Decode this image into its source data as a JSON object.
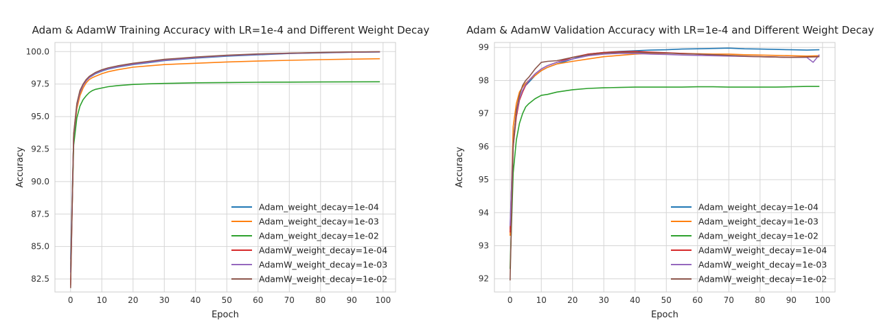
{
  "chart_data": [
    {
      "type": "line",
      "title": "Adam & AdamW Training Accuracy with LR=1e-4 and Different Weight Decay",
      "xlabel": "Epoch",
      "ylabel": "Accuracy",
      "xlim": [
        -5,
        104
      ],
      "ylim": [
        81.5,
        100.7
      ],
      "xticks": [
        0,
        10,
        20,
        30,
        40,
        50,
        60,
        70,
        80,
        90,
        100
      ],
      "yticks": [
        82.5,
        85.0,
        87.5,
        90.0,
        92.5,
        95.0,
        97.5,
        100.0
      ],
      "ytick_labels": [
        "82.5",
        "85.0",
        "87.5",
        "90.0",
        "92.5",
        "95.0",
        "97.5",
        "100.0"
      ],
      "grid": true,
      "legend_position": "lower-right",
      "series": [
        {
          "name": "Adam_weight_decay=1e-04",
          "color": "#1f77b4",
          "x": [
            0,
            1,
            2,
            3,
            4,
            5,
            6,
            7,
            8,
            10,
            12,
            15,
            20,
            25,
            30,
            40,
            50,
            60,
            70,
            80,
            90,
            99
          ],
          "y": [
            84.0,
            93.5,
            95.8,
            96.8,
            97.4,
            97.75,
            98.0,
            98.15,
            98.3,
            98.5,
            98.65,
            98.8,
            99.0,
            99.15,
            99.3,
            99.5,
            99.65,
            99.75,
            99.85,
            99.9,
            99.95,
            99.97
          ]
        },
        {
          "name": "Adam_weight_decay=1e-03",
          "color": "#ff7f0e",
          "x": [
            0,
            1,
            2,
            3,
            4,
            5,
            6,
            7,
            8,
            10,
            12,
            15,
            20,
            25,
            30,
            40,
            50,
            60,
            70,
            80,
            90,
            99
          ],
          "y": [
            83.5,
            93.3,
            95.6,
            96.6,
            97.2,
            97.6,
            97.85,
            98.0,
            98.1,
            98.3,
            98.45,
            98.6,
            98.8,
            98.9,
            99.0,
            99.1,
            99.2,
            99.27,
            99.33,
            99.38,
            99.42,
            99.45
          ]
        },
        {
          "name": "Adam_weight_decay=1e-02",
          "color": "#2ca02c",
          "x": [
            0,
            1,
            2,
            3,
            4,
            5,
            6,
            7,
            8,
            10,
            12,
            15,
            20,
            25,
            30,
            40,
            50,
            60,
            70,
            80,
            90,
            99
          ],
          "y": [
            83.2,
            92.8,
            94.9,
            95.8,
            96.3,
            96.6,
            96.85,
            97.0,
            97.1,
            97.2,
            97.3,
            97.38,
            97.47,
            97.52,
            97.55,
            97.6,
            97.62,
            97.64,
            97.65,
            97.66,
            97.67,
            97.68
          ]
        },
        {
          "name": "AdamW_weight_decay=1e-04",
          "color": "#d62728",
          "x": [
            0,
            1,
            2,
            3,
            4,
            5,
            6,
            7,
            8,
            10,
            12,
            15,
            20,
            25,
            30,
            40,
            50,
            60,
            70,
            80,
            90,
            99
          ],
          "y": [
            82.0,
            93.6,
            95.9,
            96.9,
            97.45,
            97.8,
            98.05,
            98.2,
            98.35,
            98.55,
            98.7,
            98.85,
            99.05,
            99.2,
            99.35,
            99.55,
            99.7,
            99.8,
            99.87,
            99.92,
            99.96,
            99.98
          ]
        },
        {
          "name": "AdamW_weight_decay=1e-03",
          "color": "#9467bd",
          "x": [
            0,
            1,
            2,
            3,
            4,
            5,
            6,
            7,
            8,
            10,
            12,
            15,
            20,
            25,
            30,
            40,
            50,
            60,
            70,
            80,
            90,
            99
          ],
          "y": [
            83.0,
            93.5,
            95.85,
            96.85,
            97.4,
            97.75,
            98.0,
            98.18,
            98.33,
            98.53,
            98.68,
            98.83,
            99.03,
            99.18,
            99.33,
            99.53,
            99.68,
            99.78,
            99.86,
            99.91,
            99.95,
            99.97
          ]
        },
        {
          "name": "AdamW_weight_decay=1e-02",
          "color": "#8c564b",
          "x": [
            0,
            1,
            2,
            3,
            4,
            5,
            6,
            7,
            8,
            10,
            12,
            15,
            20,
            25,
            30,
            40,
            50,
            60,
            70,
            80,
            90,
            99
          ],
          "y": [
            81.8,
            93.7,
            96.0,
            97.0,
            97.5,
            97.85,
            98.1,
            98.25,
            98.4,
            98.6,
            98.75,
            98.9,
            99.1,
            99.25,
            99.4,
            99.58,
            99.72,
            99.82,
            99.88,
            99.93,
            99.97,
            99.99
          ]
        }
      ]
    },
    {
      "type": "line",
      "title": "Adam & AdamW Validation Accuracy with LR=1e-4 and Different Weight Decay",
      "xlabel": "Epoch",
      "ylabel": "Accuracy",
      "xlim": [
        -5,
        104
      ],
      "ylim": [
        91.6,
        99.15
      ],
      "xticks": [
        0,
        10,
        20,
        30,
        40,
        50,
        60,
        70,
        80,
        90,
        100
      ],
      "yticks": [
        92,
        93,
        94,
        95,
        96,
        97,
        98,
        99
      ],
      "ytick_labels": [
        "92",
        "93",
        "94",
        "95",
        "96",
        "97",
        "98",
        "99"
      ],
      "grid": true,
      "legend_position": "lower-right",
      "series": [
        {
          "name": "Adam_weight_decay=1e-04",
          "color": "#1f77b4",
          "x": [
            0,
            1,
            2,
            3,
            4,
            5,
            6,
            8,
            10,
            12,
            15,
            20,
            25,
            30,
            35,
            40,
            45,
            50,
            55,
            60,
            65,
            70,
            75,
            80,
            85,
            90,
            95,
            99
          ],
          "y": [
            93.5,
            96.2,
            97.0,
            97.45,
            97.7,
            97.85,
            97.95,
            98.15,
            98.3,
            98.4,
            98.5,
            98.65,
            98.8,
            98.85,
            98.88,
            98.9,
            98.92,
            98.93,
            98.95,
            98.96,
            98.97,
            98.98,
            98.96,
            98.95,
            98.94,
            98.93,
            98.92,
            98.93
          ]
        },
        {
          "name": "Adam_weight_decay=1e-03",
          "color": "#ff7f0e",
          "x": [
            0,
            1,
            2,
            3,
            4,
            5,
            6,
            8,
            10,
            12,
            15,
            20,
            25,
            30,
            35,
            40,
            45,
            50,
            55,
            60,
            65,
            70,
            75,
            80,
            85,
            90,
            95,
            99
          ],
          "y": [
            93.3,
            96.6,
            97.3,
            97.65,
            97.8,
            97.92,
            98.0,
            98.15,
            98.3,
            98.4,
            98.5,
            98.58,
            98.65,
            98.72,
            98.76,
            98.8,
            98.82,
            98.83,
            98.82,
            98.81,
            98.8,
            98.8,
            98.78,
            98.77,
            98.76,
            98.75,
            98.74,
            98.75
          ]
        },
        {
          "name": "Adam_weight_decay=1e-02",
          "color": "#2ca02c",
          "x": [
            0,
            1,
            2,
            3,
            4,
            5,
            6,
            8,
            10,
            12,
            15,
            20,
            25,
            30,
            35,
            40,
            45,
            50,
            55,
            60,
            65,
            70,
            75,
            80,
            85,
            90,
            95,
            99
          ],
          "y": [
            92.3,
            95.2,
            96.2,
            96.7,
            97.0,
            97.2,
            97.3,
            97.45,
            97.55,
            97.58,
            97.65,
            97.72,
            97.76,
            97.78,
            97.79,
            97.8,
            97.8,
            97.8,
            97.8,
            97.81,
            97.81,
            97.8,
            97.8,
            97.8,
            97.8,
            97.81,
            97.82,
            97.82
          ]
        },
        {
          "name": "AdamW_weight_decay=1e-04",
          "color": "#d62728",
          "x": [
            0,
            1,
            2,
            3,
            4,
            5,
            6,
            8,
            10,
            12,
            15,
            20,
            25,
            30,
            35,
            40,
            45,
            50,
            55,
            60,
            65,
            70,
            75,
            80,
            85,
            90,
            95,
            99
          ],
          "y": [
            93.4,
            96.0,
            96.9,
            97.4,
            97.65,
            97.85,
            98.0,
            98.2,
            98.35,
            98.45,
            98.55,
            98.7,
            98.8,
            98.85,
            98.87,
            98.88,
            98.86,
            98.84,
            98.82,
            98.8,
            98.77,
            98.75,
            98.73,
            98.72,
            98.71,
            98.7,
            98.71,
            98.72
          ]
        },
        {
          "name": "AdamW_weight_decay=1e-03",
          "color": "#9467bd",
          "x": [
            0,
            1,
            2,
            3,
            4,
            5,
            6,
            8,
            10,
            12,
            15,
            20,
            25,
            30,
            35,
            40,
            45,
            50,
            55,
            60,
            65,
            70,
            75,
            80,
            85,
            90,
            95,
            97,
            99
          ],
          "y": [
            93.6,
            96.1,
            97.0,
            97.45,
            97.7,
            97.88,
            98.0,
            98.2,
            98.35,
            98.45,
            98.55,
            98.65,
            98.75,
            98.8,
            98.82,
            98.82,
            98.8,
            98.79,
            98.77,
            98.76,
            98.75,
            98.74,
            98.73,
            98.72,
            98.71,
            98.7,
            98.7,
            98.55,
            98.78
          ]
        },
        {
          "name": "AdamW_weight_decay=1e-02",
          "color": "#8c564b",
          "x": [
            0,
            1,
            2,
            3,
            4,
            5,
            6,
            8,
            10,
            12,
            15,
            20,
            25,
            30,
            35,
            40,
            45,
            50,
            55,
            60,
            65,
            70,
            75,
            80,
            85,
            90,
            95,
            99
          ],
          "y": [
            91.95,
            96.0,
            97.1,
            97.55,
            97.85,
            98.0,
            98.1,
            98.35,
            98.55,
            98.58,
            98.6,
            98.7,
            98.78,
            98.83,
            98.85,
            98.85,
            98.84,
            98.83,
            98.81,
            98.8,
            98.78,
            98.76,
            98.74,
            98.72,
            98.71,
            98.7,
            98.71,
            98.72
          ]
        }
      ]
    }
  ]
}
